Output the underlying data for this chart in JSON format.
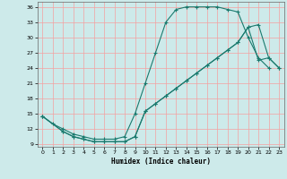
{
  "xlabel": "Humidex (Indice chaleur)",
  "bg_color": "#cdeaea",
  "grid_color": "#f5a0a0",
  "line_color": "#1a7a6e",
  "xlim": [
    -0.5,
    23.5
  ],
  "ylim": [
    8.5,
    37.0
  ],
  "yticks": [
    9,
    12,
    15,
    18,
    21,
    24,
    27,
    30,
    33,
    36
  ],
  "xticks": [
    0,
    1,
    2,
    3,
    4,
    5,
    6,
    7,
    8,
    9,
    10,
    11,
    12,
    13,
    14,
    15,
    16,
    17,
    18,
    19,
    20,
    21,
    22,
    23
  ],
  "line1_x": [
    0,
    1,
    2,
    3,
    4,
    5,
    6,
    7,
    8,
    9,
    10,
    11,
    12,
    13,
    14,
    15,
    16,
    17,
    18,
    19,
    20,
    21,
    22
  ],
  "line1_y": [
    14.5,
    13.0,
    12.0,
    11.0,
    10.5,
    10.0,
    10.0,
    10.0,
    10.5,
    15.0,
    21.0,
    27.0,
    33.0,
    35.5,
    36.0,
    36.0,
    36.0,
    36.0,
    35.5,
    35.0,
    30.0,
    26.0,
    24.0
  ],
  "line2_x": [
    0,
    2,
    3,
    4,
    5,
    6,
    7,
    8,
    9,
    10,
    11,
    12,
    13,
    14,
    15,
    16,
    17,
    18,
    19,
    20,
    21,
    22,
    23
  ],
  "line2_y": [
    14.5,
    11.5,
    10.5,
    10.0,
    9.5,
    9.5,
    9.5,
    9.5,
    10.5,
    15.5,
    17.0,
    18.5,
    20.0,
    21.5,
    23.0,
    24.5,
    26.0,
    27.5,
    29.0,
    32.0,
    32.5,
    26.0,
    24.0
  ],
  "line3_x": [
    0,
    2,
    3,
    4,
    5,
    6,
    7,
    8,
    9,
    10,
    11,
    12,
    13,
    14,
    15,
    16,
    17,
    18,
    19,
    20,
    21,
    22,
    23
  ],
  "line3_y": [
    14.5,
    11.5,
    10.5,
    10.0,
    9.5,
    9.5,
    9.5,
    9.5,
    10.5,
    15.5,
    17.0,
    18.5,
    20.0,
    21.5,
    23.0,
    24.5,
    26.0,
    27.5,
    29.0,
    32.0,
    25.5,
    26.0,
    24.0
  ]
}
